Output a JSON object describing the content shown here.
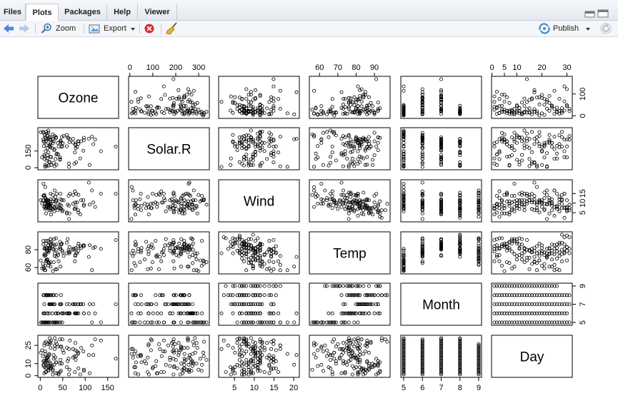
{
  "tabs": [
    {
      "label": "Files",
      "active": false
    },
    {
      "label": "Plots",
      "active": true
    },
    {
      "label": "Packages",
      "active": false
    },
    {
      "label": "Help",
      "active": false
    },
    {
      "label": "Viewer",
      "active": false
    }
  ],
  "toolbar": {
    "zoom_label": "Zoom",
    "export_label": "Export",
    "publish_label": "Publish",
    "back_icon": "arrow-left-icon",
    "forward_icon": "arrow-right-icon",
    "zoom_icon": "magnifier-plus-icon",
    "export_icon": "image-export-icon",
    "remove_icon": "close-circle-icon",
    "clear_icon": "broom-icon",
    "publish_icon": "publish-icon",
    "refresh_icon": "refresh-icon"
  },
  "chart_data": {
    "type": "scatter",
    "variables": [
      "Ozone",
      "Solar.R",
      "Wind",
      "Temp",
      "Month",
      "Day"
    ],
    "ranges": {
      "Ozone": [
        1,
        168
      ],
      "Solar.R": [
        7,
        334
      ],
      "Wind": [
        1.7,
        20.7
      ],
      "Temp": [
        56,
        97
      ],
      "Month": [
        5,
        9
      ],
      "Day": [
        1,
        31
      ]
    },
    "ticks": {
      "Ozone": [
        0,
        50,
        100,
        150
      ],
      "Solar.R": [
        0,
        100,
        200,
        300
      ],
      "Wind": [
        5,
        10,
        15,
        20
      ],
      "Temp": [
        60,
        70,
        80,
        90
      ],
      "Month": [
        5,
        6,
        7,
        8,
        9
      ],
      "Day": [
        0,
        5,
        10,
        20,
        30
      ]
    },
    "left_ticks": {
      "Solar.R": [
        0,
        150
      ],
      "Temp": [
        60,
        80
      ],
      "Day": [
        0,
        10,
        25
      ]
    },
    "right_ticks": {
      "Ozone": [
        0,
        100
      ],
      "Wind": [
        5,
        10,
        15
      ],
      "Month": [
        5,
        7,
        9
      ]
    },
    "columns": {
      "Ozone": [
        41,
        36,
        12,
        18,
        28,
        23,
        19,
        8,
        7,
        16,
        11,
        14,
        18,
        14,
        34,
        6,
        30,
        11,
        1,
        11,
        4,
        32,
        23,
        45,
        115,
        37,
        10,
        13,
        135,
        49,
        32,
        64,
        40,
        77,
        97,
        97,
        85,
        10,
        27,
        7,
        48,
        35,
        61,
        79,
        63,
        16,
        80,
        108,
        20,
        52,
        82,
        50,
        64,
        59,
        39,
        9,
        16,
        78,
        35,
        66,
        122,
        89,
        110,
        44,
        28,
        65,
        22,
        59,
        23,
        31,
        44,
        21,
        9,
        45,
        168,
        73,
        76,
        118,
        84,
        85,
        96,
        78,
        73,
        91,
        47,
        32,
        20,
        23,
        21,
        24,
        44,
        21,
        28,
        9,
        13,
        46,
        18,
        13,
        24,
        16,
        13,
        23,
        36,
        7,
        14,
        30,
        14,
        18,
        20
      ],
      "Solar.R": [
        190,
        118,
        149,
        313,
        299,
        99,
        19,
        194,
        256,
        290,
        274,
        65,
        334,
        307,
        78,
        322,
        44,
        8,
        320,
        25,
        92,
        13,
        252,
        223,
        279,
        127,
        291,
        323,
        148,
        191,
        284,
        37,
        120,
        137,
        269,
        248,
        236,
        101,
        175,
        314,
        276,
        267,
        272,
        175,
        264,
        175,
        48,
        260,
        274,
        285,
        187,
        220,
        7,
        294,
        223,
        81,
        82,
        213,
        275,
        253,
        254,
        83,
        24,
        77,
        255,
        229,
        207,
        192,
        273,
        157,
        71,
        51,
        115,
        244,
        190,
        259,
        36,
        212,
        238,
        215,
        153,
        203,
        225,
        237,
        188,
        167,
        197,
        183,
        189,
        95,
        92,
        252,
        220,
        230,
        259,
        236,
        259,
        238,
        24,
        112,
        237,
        224,
        27,
        238,
        201,
        238,
        14,
        139,
        49,
        20,
        193,
        145,
        191,
        131,
        223
      ],
      "Wind": [
        7.4,
        8,
        12.6,
        11.5,
        14.3,
        14.9,
        8.6,
        13.8,
        20.1,
        8.6,
        6.9,
        9.7,
        9.2,
        10.9,
        13.2,
        11.5,
        12,
        18.4,
        11.5,
        9.7,
        9.7,
        16.6,
        9.7,
        12,
        16.6,
        14.9,
        8,
        12,
        14.9,
        5.7,
        7.4,
        8.6,
        9.7,
        16.1,
        9.2,
        8.6,
        14.3,
        9.7,
        6.9,
        13.8,
        11.5,
        10.9,
        9.2,
        8,
        13.8,
        11.5,
        14.9,
        20.7,
        9.2,
        11.5,
        10.3,
        6.3,
        1.7,
        4.6,
        6.3,
        8,
        8,
        10.3,
        11.5,
        14.9,
        8,
        4.1,
        9.2,
        9.2,
        10.9,
        4.6,
        10.9,
        5.1,
        6.3,
        5.7,
        7.4,
        8.6,
        14.3,
        14.9,
        14.9,
        14.3,
        6.9,
        10.3,
        6.3,
        5.1,
        11.5,
        6.9,
        9.7,
        11.5,
        8.6,
        8,
        8.6,
        12,
        7.4,
        7.4,
        7.4,
        9.2,
        6.9,
        13.8,
        7.4,
        6.9,
        7.4,
        4.6,
        4,
        10.3,
        8,
        8.6,
        11.5,
        11.5,
        11.5,
        9.7,
        11.5,
        10.3,
        6.3,
        7.4,
        10.9,
        10.3,
        15.5,
        14.3,
        12.6,
        9.7,
        3.4,
        8,
        5.7,
        9.7,
        2.3,
        6.3,
        6.3,
        6.9,
        5.1,
        2.8,
        4.6,
        7.4,
        15.5,
        10.9,
        10.3,
        10.9,
        9.7,
        14.9,
        15.5,
        6.3,
        10.9,
        11.5,
        6.9,
        13.8,
        10.3,
        10.3,
        8,
        12.6,
        9.2,
        10.3,
        10.3,
        16.6,
        6.9,
        13.2,
        14.3,
        8,
        11.5
      ],
      "Temp": [
        67,
        72,
        74,
        62,
        56,
        66,
        65,
        59,
        61,
        69,
        74,
        69,
        66,
        68,
        58,
        64,
        66,
        57,
        68,
        62,
        59,
        73,
        61,
        61,
        57,
        58,
        57,
        67,
        81,
        79,
        76,
        78,
        74,
        67,
        84,
        85,
        79,
        82,
        87,
        90,
        87,
        93,
        92,
        82,
        80,
        79,
        77,
        72,
        65,
        73,
        76,
        77,
        76,
        76,
        76,
        75,
        78,
        73,
        80,
        77,
        83,
        84,
        85,
        81,
        84,
        83,
        83,
        88,
        92,
        92,
        89,
        82,
        73,
        81,
        91,
        80,
        81,
        82,
        84,
        87,
        85,
        74,
        81,
        82,
        86,
        85,
        82,
        86,
        88,
        86,
        83,
        81,
        81,
        81,
        82,
        86,
        85,
        87,
        89,
        90,
        90,
        92,
        86,
        86,
        82,
        80,
        79,
        77,
        79,
        76,
        78,
        78,
        77,
        72,
        75,
        79,
        81,
        86,
        88,
        97,
        94,
        96,
        94,
        91,
        92,
        93,
        93,
        87,
        84,
        80,
        78,
        75,
        73,
        81,
        76,
        77,
        71,
        71,
        78,
        67,
        76,
        68,
        82,
        64,
        71,
        81,
        69,
        63,
        70,
        77,
        75,
        76,
        68
      ],
      "Month": [
        5,
        5,
        5,
        5,
        5,
        5,
        5,
        5,
        5,
        5,
        5,
        5,
        5,
        5,
        5,
        5,
        5,
        5,
        5,
        5,
        5,
        5,
        5,
        5,
        5,
        5,
        5,
        5,
        5,
        5,
        5,
        6,
        6,
        6,
        6,
        6,
        6,
        6,
        6,
        6,
        6,
        6,
        6,
        6,
        6,
        6,
        6,
        6,
        6,
        6,
        6,
        6,
        6,
        6,
        6,
        6,
        6,
        6,
        6,
        6,
        6,
        7,
        7,
        7,
        7,
        7,
        7,
        7,
        7,
        7,
        7,
        7,
        7,
        7,
        7,
        7,
        7,
        7,
        7,
        7,
        7,
        7,
        7,
        7,
        7,
        7,
        7,
        7,
        7,
        7,
        7,
        7,
        8,
        8,
        8,
        8,
        8,
        8,
        8,
        8,
        8,
        8,
        8,
        8,
        8,
        8,
        8,
        8,
        8,
        8,
        8,
        8,
        8,
        8,
        8,
        8,
        8,
        8,
        8,
        8,
        8,
        8,
        8,
        9,
        9,
        9,
        9,
        9,
        9,
        9,
        9,
        9,
        9,
        9,
        9,
        9,
        9,
        9,
        9,
        9,
        9,
        9,
        9,
        9,
        9,
        9,
        9,
        9,
        9
      ],
      "Day": [
        1,
        2,
        3,
        4,
        5,
        6,
        7,
        8,
        9,
        10,
        11,
        12,
        13,
        14,
        15,
        16,
        17,
        18,
        19,
        20,
        21,
        22,
        23,
        24,
        25,
        26,
        27,
        28,
        29,
        30,
        31,
        1,
        2,
        3,
        4,
        5,
        6,
        7,
        8,
        9,
        10,
        11,
        12,
        13,
        14,
        15,
        16,
        17,
        18,
        19,
        20,
        21,
        22,
        23,
        24,
        25,
        26,
        27,
        28,
        29,
        30,
        1,
        2,
        3,
        4,
        5,
        6,
        7,
        8,
        9,
        10,
        11,
        12,
        13,
        14,
        15,
        16,
        17,
        18,
        19,
        20,
        21,
        22,
        23,
        24,
        25,
        26,
        27,
        28,
        29,
        30,
        31,
        1,
        2,
        3,
        4,
        5,
        6,
        7,
        8,
        9,
        10,
        11,
        12,
        13,
        14,
        15,
        16,
        17,
        18,
        19,
        20,
        21,
        22,
        23,
        24,
        25,
        26,
        27,
        28,
        29,
        30,
        31,
        1,
        2,
        3,
        4,
        5,
        6,
        7,
        8,
        9,
        10,
        11,
        12,
        13,
        14,
        15,
        16,
        17,
        18,
        19,
        20,
        21,
        22,
        23,
        24,
        25,
        26,
        27,
        28,
        29,
        30
      ]
    },
    "title": "",
    "grid": false,
    "legend": "none"
  }
}
